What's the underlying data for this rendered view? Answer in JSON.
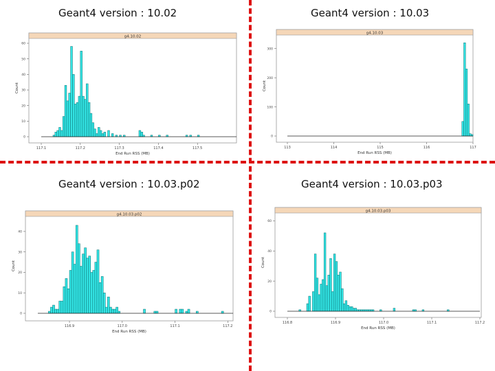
{
  "slide": {
    "titles": [
      "Geant4 version : 10.02",
      "Geant4 version : 10.03",
      "Geant4 version : 10.03.p02",
      "Geant4 version : 10.03.p03"
    ]
  },
  "colors": {
    "bar_fill": "#33e5e5",
    "bar_stroke": "#0a6f70",
    "strip": "#f5d7b8",
    "divider": "#dd1111"
  },
  "chart_data": [
    {
      "type": "bar",
      "title": "g4.10.02",
      "xlabel": "End Run RSS (MB)",
      "ylabel": "Count",
      "xlim": [
        117.1,
        117.6
      ],
      "ylim": [
        0,
        60
      ],
      "xticks": [
        "117.1",
        "117.2",
        "117.3",
        "117.4",
        "117.5"
      ],
      "yticks": [
        "0",
        "10",
        "20",
        "30",
        "40",
        "50",
        "60"
      ],
      "bin_width": 0.005,
      "bins_start": [
        117.13,
        117.135,
        117.14,
        117.145,
        117.15,
        117.155,
        117.16,
        117.165,
        117.17,
        117.175,
        117.18,
        117.185,
        117.19,
        117.195,
        117.2,
        117.205,
        117.21,
        117.215,
        117.22,
        117.225,
        117.23,
        117.235,
        117.24,
        117.245,
        117.25,
        117.255,
        117.26,
        117.27,
        117.28,
        117.29,
        117.3,
        117.31,
        117.35,
        117.355,
        117.36,
        117.38,
        117.4,
        117.42,
        117.47,
        117.48,
        117.5
      ],
      "values": [
        1,
        3,
        4,
        6,
        4,
        13,
        33,
        23,
        28,
        58,
        40,
        21,
        22,
        26,
        55,
        26,
        24,
        34,
        22,
        15,
        9,
        5,
        2,
        6,
        4,
        2,
        3,
        4,
        2,
        1,
        1,
        1,
        4,
        3,
        1,
        1,
        1,
        1,
        1,
        1,
        1
      ]
    },
    {
      "type": "bar",
      "title": "g4.10.03",
      "xlabel": "End Run RSS (MB)",
      "ylabel": "Count",
      "xlim": [
        113,
        117
      ],
      "ylim": [
        0,
        330
      ],
      "xticks": [
        "113",
        "114",
        "115",
        "116",
        "117"
      ],
      "yticks": [
        "0",
        "100",
        "200",
        "300"
      ],
      "bin_width": 0.04,
      "bins_start": [
        116.76,
        116.8,
        116.84,
        116.88,
        116.92,
        116.96
      ],
      "values": [
        50,
        320,
        230,
        110,
        8,
        5
      ]
    },
    {
      "type": "bar",
      "title": "g4.10.03.p02",
      "xlabel": "End Run RSS (MB)",
      "ylabel": "Count",
      "xlim": [
        116.84,
        117.21
      ],
      "ylim": [
        0,
        45
      ],
      "xticks": [
        "116.9",
        "117.0",
        "117.1",
        "117.2"
      ],
      "yticks": [
        "0",
        "10",
        "20",
        "30",
        "40"
      ],
      "bin_width": 0.004,
      "bins_start": [
        116.86,
        116.864,
        116.868,
        116.872,
        116.876,
        116.88,
        116.884,
        116.888,
        116.892,
        116.896,
        116.9,
        116.904,
        116.908,
        116.912,
        116.916,
        116.92,
        116.924,
        116.928,
        116.932,
        116.936,
        116.94,
        116.944,
        116.948,
        116.952,
        116.956,
        116.96,
        116.964,
        116.968,
        116.972,
        116.976,
        116.98,
        116.984,
        116.988,
        116.992,
        117.04,
        117.06,
        117.064,
        117.1,
        117.108,
        117.112,
        117.12,
        117.124,
        117.14,
        117.188
      ],
      "values": [
        1,
        3,
        4,
        2,
        2,
        6,
        6,
        13,
        17,
        12,
        21,
        30,
        24,
        43,
        34,
        23,
        29,
        32,
        27,
        28,
        20,
        21,
        25,
        31,
        15,
        18,
        10,
        3,
        8,
        3,
        2,
        2,
        3,
        1,
        2,
        1,
        1,
        2,
        2,
        2,
        1,
        2,
        1,
        1
      ]
    },
    {
      "type": "bar",
      "title": "g4.10.03.p03",
      "xlabel": "End Run RSS (MB)",
      "ylabel": "Count",
      "xlim": [
        116.8,
        117.2
      ],
      "ylim": [
        0,
        62
      ],
      "xticks": [
        "116.8",
        "116.9",
        "117.0",
        "117.1",
        "117.2"
      ],
      "yticks": [
        "0",
        "20",
        "40",
        "60"
      ],
      "bin_width": 0.004,
      "bins_start": [
        116.824,
        116.84,
        116.844,
        116.852,
        116.856,
        116.86,
        116.864,
        116.868,
        116.872,
        116.876,
        116.88,
        116.884,
        116.888,
        116.892,
        116.896,
        116.9,
        116.904,
        116.908,
        116.912,
        116.916,
        116.92,
        116.924,
        116.928,
        116.932,
        116.936,
        116.94,
        116.944,
        116.948,
        116.952,
        116.956,
        116.96,
        116.964,
        116.968,
        116.972,
        116.976,
        116.992,
        117.02,
        117.06,
        117.064,
        117.08,
        117.132
      ],
      "values": [
        1,
        5,
        10,
        13,
        38,
        22,
        11,
        18,
        21,
        52,
        17,
        24,
        35,
        13,
        38,
        33,
        24,
        26,
        15,
        5,
        7,
        4,
        3,
        3,
        2,
        2,
        1,
        1,
        1,
        1,
        1,
        1,
        1,
        1,
        1,
        1,
        2,
        1,
        1,
        1,
        1
      ]
    }
  ]
}
